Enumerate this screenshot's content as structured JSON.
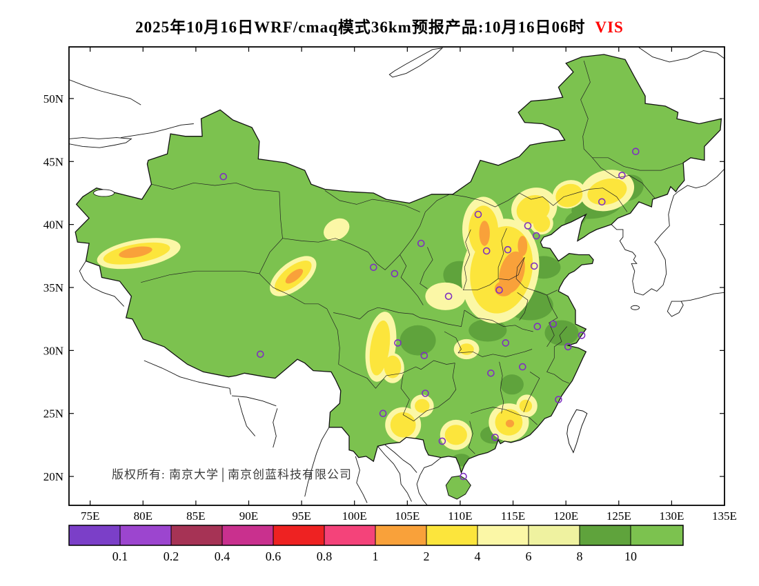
{
  "title": {
    "text": "2025年10月16日WRF/cmaq模式36km预报产品:10月16日06时",
    "variable": "VIS",
    "variable_color": "#ff0000"
  },
  "map": {
    "copyright": "版权所有: 南京大学│南京创蓝科技有限公司",
    "land_color": "#7CC24F",
    "sea_color": "#ffffff",
    "marker_color": "#7E2FC0"
  },
  "axes": {
    "lat_ticks": [
      "50N",
      "45N",
      "40N",
      "35N",
      "30N",
      "25N",
      "20N"
    ],
    "lon_ticks": [
      "75E",
      "80E",
      "85E",
      "90E",
      "95E",
      "100E",
      "105E",
      "110E",
      "115E",
      "120E",
      "125E",
      "130E",
      "135E"
    ]
  },
  "colorbar": {
    "labels": [
      "0.1",
      "0.2",
      "0.4",
      "0.6",
      "0.8",
      "1",
      "2",
      "4",
      "6",
      "8",
      "10"
    ],
    "colors": [
      "#7B3FC8",
      "#9C45CF",
      "#A63355",
      "#C9308E",
      "#EE2222",
      "#F4437A",
      "#F9A13A",
      "#FCE53C",
      "#FBF7A6",
      "#EFF2A0",
      "#5FA33C",
      "#7CC24F"
    ]
  },
  "chart_data": {
    "type": "heatmap",
    "variable": "VIS",
    "scale_values": [
      0.1,
      0.2,
      0.4,
      0.6,
      0.8,
      1,
      2,
      4,
      6,
      8,
      10
    ],
    "lon_range": [
      73,
      135
    ],
    "lat_range": [
      17.7,
      54.1
    ],
    "city_markers": [
      [
        87.6,
        43.8
      ],
      [
        126.6,
        45.8
      ],
      [
        125.3,
        43.9
      ],
      [
        123.4,
        41.8
      ],
      [
        111.7,
        40.8
      ],
      [
        116.4,
        39.9
      ],
      [
        117.2,
        39.1
      ],
      [
        114.5,
        38.0
      ],
      [
        112.5,
        37.9
      ],
      [
        106.3,
        38.5
      ],
      [
        101.8,
        36.6
      ],
      [
        103.8,
        36.1
      ],
      [
        108.9,
        34.3
      ],
      [
        117.0,
        36.7
      ],
      [
        113.7,
        34.8
      ],
      [
        91.1,
        29.7
      ],
      [
        104.1,
        30.6
      ],
      [
        106.6,
        29.6
      ],
      [
        114.3,
        30.6
      ],
      [
        112.9,
        28.2
      ],
      [
        117.3,
        31.9
      ],
      [
        118.8,
        32.1
      ],
      [
        121.5,
        31.2
      ],
      [
        120.2,
        30.3
      ],
      [
        115.9,
        28.7
      ],
      [
        119.3,
        26.1
      ],
      [
        102.7,
        25.0
      ],
      [
        106.7,
        26.6
      ],
      [
        113.3,
        23.1
      ],
      [
        108.3,
        22.8
      ],
      [
        110.3,
        20.0
      ]
    ],
    "vis_regions": [
      {
        "type": "olive",
        "lon": 122.9,
        "lat": 41.4,
        "rx": 2.4,
        "ry": 0.9,
        "rot": -10
      },
      {
        "type": "olive",
        "lon": 125.9,
        "lat": 42.9,
        "rx": 1.5,
        "ry": 1.0,
        "rot": -25
      },
      {
        "type": "olive",
        "lon": 120.9,
        "lat": 40.4,
        "rx": 1.1,
        "ry": 0.6,
        "rot": -30
      },
      {
        "type": "olive",
        "lon": 117.9,
        "lat": 36.6,
        "rx": 1.6,
        "ry": 0.9,
        "rot": 0
      },
      {
        "type": "olive",
        "lon": 116.6,
        "lat": 33.6,
        "rx": 2.2,
        "ry": 1.2,
        "rot": 0
      },
      {
        "type": "olive",
        "lon": 119.6,
        "lat": 31.4,
        "rx": 1.6,
        "ry": 1.0,
        "rot": 0
      },
      {
        "type": "olive",
        "lon": 112.6,
        "lat": 31.6,
        "rx": 1.8,
        "ry": 0.9,
        "rot": 0
      },
      {
        "type": "olive",
        "lon": 109.9,
        "lat": 36.0,
        "rx": 1.5,
        "ry": 1.1,
        "rot": 0
      },
      {
        "type": "olive",
        "lon": 106.0,
        "lat": 30.8,
        "rx": 1.7,
        "ry": 1.2,
        "rot": 0
      },
      {
        "type": "olive",
        "lon": 113.1,
        "lat": 23.3,
        "rx": 1.2,
        "ry": 0.7,
        "rot": 0
      },
      {
        "type": "olive",
        "lon": 110.1,
        "lat": 21.3,
        "rx": 0.9,
        "ry": 0.5,
        "rot": 0
      },
      {
        "type": "olive",
        "lon": 114.9,
        "lat": 27.3,
        "rx": 1.1,
        "ry": 0.8,
        "rot": 0
      },
      {
        "type": "pale",
        "lon": 79.6,
        "lat": 37.7,
        "rx": 4.0,
        "ry": 1.1,
        "rot": -10
      },
      {
        "type": "pale",
        "lon": 94.2,
        "lat": 35.9,
        "rx": 2.6,
        "ry": 1.1,
        "rot": -38
      },
      {
        "type": "pale",
        "lon": 113.8,
        "lat": 36.3,
        "rx": 3.6,
        "ry": 4.2,
        "rot": 12
      },
      {
        "type": "pale",
        "lon": 112.2,
        "lat": 39.6,
        "rx": 2.0,
        "ry": 2.6,
        "rot": 0
      },
      {
        "type": "pale",
        "lon": 117.0,
        "lat": 41.3,
        "rx": 2.2,
        "ry": 1.6,
        "rot": -20
      },
      {
        "type": "pale",
        "lon": 120.3,
        "lat": 42.4,
        "rx": 1.6,
        "ry": 1.1,
        "rot": -20
      },
      {
        "type": "pale",
        "lon": 123.9,
        "lat": 42.7,
        "rx": 2.6,
        "ry": 1.6,
        "rot": -15
      },
      {
        "type": "pale",
        "lon": 102.5,
        "lat": 30.3,
        "rx": 1.4,
        "ry": 2.8,
        "rot": 8
      },
      {
        "type": "pale",
        "lon": 103.6,
        "lat": 28.6,
        "rx": 1.1,
        "ry": 1.2,
        "rot": 0
      },
      {
        "type": "pale",
        "lon": 104.6,
        "lat": 24.1,
        "rx": 1.7,
        "ry": 1.4,
        "rot": 0
      },
      {
        "type": "pale",
        "lon": 109.6,
        "lat": 23.3,
        "rx": 1.5,
        "ry": 1.2,
        "rot": 0
      },
      {
        "type": "pale",
        "lon": 114.6,
        "lat": 24.3,
        "rx": 1.9,
        "ry": 1.5,
        "rot": 0
      },
      {
        "type": "pale",
        "lon": 108.6,
        "lat": 34.3,
        "rx": 1.9,
        "ry": 1.1,
        "rot": 0
      },
      {
        "type": "pale",
        "lon": 106.4,
        "lat": 25.6,
        "rx": 1.1,
        "ry": 0.9,
        "rot": 0
      },
      {
        "type": "pale",
        "lon": 98.3,
        "lat": 39.6,
        "rx": 1.3,
        "ry": 0.8,
        "rot": -30
      },
      {
        "type": "pale",
        "lon": 116.3,
        "lat": 25.6,
        "rx": 1.0,
        "ry": 0.9,
        "rot": 0
      },
      {
        "type": "pale",
        "lon": 110.6,
        "lat": 30.1,
        "rx": 1.2,
        "ry": 0.8,
        "rot": 0
      },
      {
        "type": "pale",
        "lon": 117.7,
        "lat": 40.1,
        "rx": 1.1,
        "ry": 0.9,
        "rot": 0
      },
      {
        "type": "yellow",
        "lon": 79.4,
        "lat": 37.7,
        "rx": 3.2,
        "ry": 0.75,
        "rot": -10
      },
      {
        "type": "yellow",
        "lon": 94.2,
        "lat": 35.9,
        "rx": 2.1,
        "ry": 0.75,
        "rot": -38
      },
      {
        "type": "yellow",
        "lon": 113.9,
        "lat": 36.4,
        "rx": 2.9,
        "ry": 3.5,
        "rot": 12
      },
      {
        "type": "yellow",
        "lon": 112.2,
        "lat": 39.5,
        "rx": 1.4,
        "ry": 2.0,
        "rot": 0
      },
      {
        "type": "yellow",
        "lon": 116.9,
        "lat": 41.2,
        "rx": 1.6,
        "ry": 1.1,
        "rot": -20
      },
      {
        "type": "yellow",
        "lon": 120.3,
        "lat": 42.3,
        "rx": 1.3,
        "ry": 0.9,
        "rot": -20
      },
      {
        "type": "yellow",
        "lon": 123.9,
        "lat": 42.6,
        "rx": 1.9,
        "ry": 1.0,
        "rot": -15
      },
      {
        "type": "yellow",
        "lon": 102.4,
        "lat": 30.2,
        "rx": 0.9,
        "ry": 2.2,
        "rot": 8
      },
      {
        "type": "yellow",
        "lon": 103.6,
        "lat": 28.7,
        "rx": 0.8,
        "ry": 0.9,
        "rot": 0
      },
      {
        "type": "yellow",
        "lon": 104.6,
        "lat": 24.1,
        "rx": 1.2,
        "ry": 1.0,
        "rot": 0
      },
      {
        "type": "yellow",
        "lon": 109.6,
        "lat": 23.3,
        "rx": 1.05,
        "ry": 0.8,
        "rot": 0
      },
      {
        "type": "yellow",
        "lon": 114.6,
        "lat": 24.3,
        "rx": 1.3,
        "ry": 1.05,
        "rot": 0
      },
      {
        "type": "yellow",
        "lon": 106.4,
        "lat": 25.6,
        "rx": 0.7,
        "ry": 0.55,
        "rot": 0
      },
      {
        "type": "yellow",
        "lon": 116.2,
        "lat": 25.6,
        "rx": 0.6,
        "ry": 0.5,
        "rot": 0
      },
      {
        "type": "yellow",
        "lon": 110.6,
        "lat": 30.1,
        "rx": 0.7,
        "ry": 0.45,
        "rot": 0
      },
      {
        "type": "yellow",
        "lon": 117.7,
        "lat": 40.1,
        "rx": 0.8,
        "ry": 0.7,
        "rot": 0
      },
      {
        "type": "orange",
        "lon": 114.9,
        "lat": 36.2,
        "rx": 1.15,
        "ry": 1.7,
        "rot": 15
      },
      {
        "type": "orange",
        "lon": 114.1,
        "lat": 34.9,
        "rx": 0.85,
        "ry": 0.6,
        "rot": 0
      },
      {
        "type": "orange",
        "lon": 112.3,
        "lat": 39.3,
        "rx": 0.5,
        "ry": 1.0,
        "rot": 0
      },
      {
        "type": "orange",
        "lon": 115.9,
        "lat": 38.3,
        "rx": 0.45,
        "ry": 0.8,
        "rot": 0
      },
      {
        "type": "orange",
        "lon": 79.3,
        "lat": 37.8,
        "rx": 1.6,
        "ry": 0.4,
        "rot": -10
      },
      {
        "type": "orange",
        "lon": 94.3,
        "lat": 35.9,
        "rx": 1.0,
        "ry": 0.35,
        "rot": -38
      },
      {
        "type": "orange",
        "lon": 114.7,
        "lat": 24.2,
        "rx": 0.4,
        "ry": 0.3,
        "rot": 0
      }
    ]
  }
}
